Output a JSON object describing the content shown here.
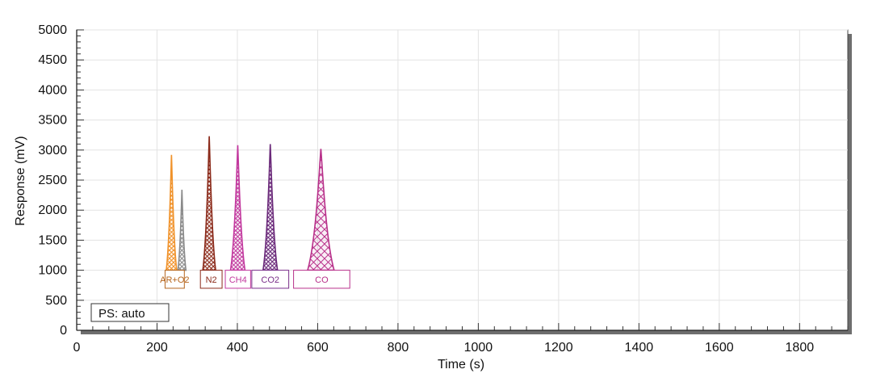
{
  "chart_data": {
    "type": "line",
    "title": "",
    "xlabel": "Time (s)",
    "ylabel": "Response (mV)",
    "xlim": [
      0,
      1920
    ],
    "ylim": [
      0,
      5000
    ],
    "x_ticks": [
      0,
      200,
      400,
      600,
      800,
      1000,
      1200,
      1400,
      1600,
      1800
    ],
    "y_ticks": [
      0,
      500,
      1000,
      1500,
      2000,
      2500,
      3000,
      3500,
      4000,
      4500,
      5000
    ],
    "grid": true,
    "baseline": 1000,
    "peaks": [
      {
        "label": "AR+O2",
        "apex_time": 236,
        "apex_response": 2920,
        "width": 26,
        "color": "#f0922a",
        "label_color": "#b5651d",
        "label_box": [
          220,
          268
        ]
      },
      {
        "label": "",
        "apex_time": 262,
        "apex_response": 2340,
        "width": 20,
        "color": "#8a8a8a",
        "label_color": "#555555",
        "label_box": [
          0,
          0
        ]
      },
      {
        "label": "N2",
        "apex_time": 330,
        "apex_response": 3230,
        "width": 32,
        "color": "#8b2a1a",
        "label_color": "#8b2a1a",
        "label_box": [
          308,
          362
        ]
      },
      {
        "label": "CH4",
        "apex_time": 401,
        "apex_response": 3080,
        "width": 36,
        "color": "#c2389e",
        "label_color": "#c2389e",
        "label_box": [
          370,
          433
        ]
      },
      {
        "label": "CO2",
        "apex_time": 482,
        "apex_response": 3100,
        "width": 36,
        "color": "#6b2a7a",
        "label_color": "#7a2f8a",
        "label_box": [
          436,
          528
        ]
      },
      {
        "label": "CO",
        "apex_time": 608,
        "apex_response": 3020,
        "width": 66,
        "color": "#b8308a",
        "label_color": "#b8308a",
        "label_box": [
          540,
          680
        ]
      }
    ],
    "annotation": "PS: auto"
  }
}
